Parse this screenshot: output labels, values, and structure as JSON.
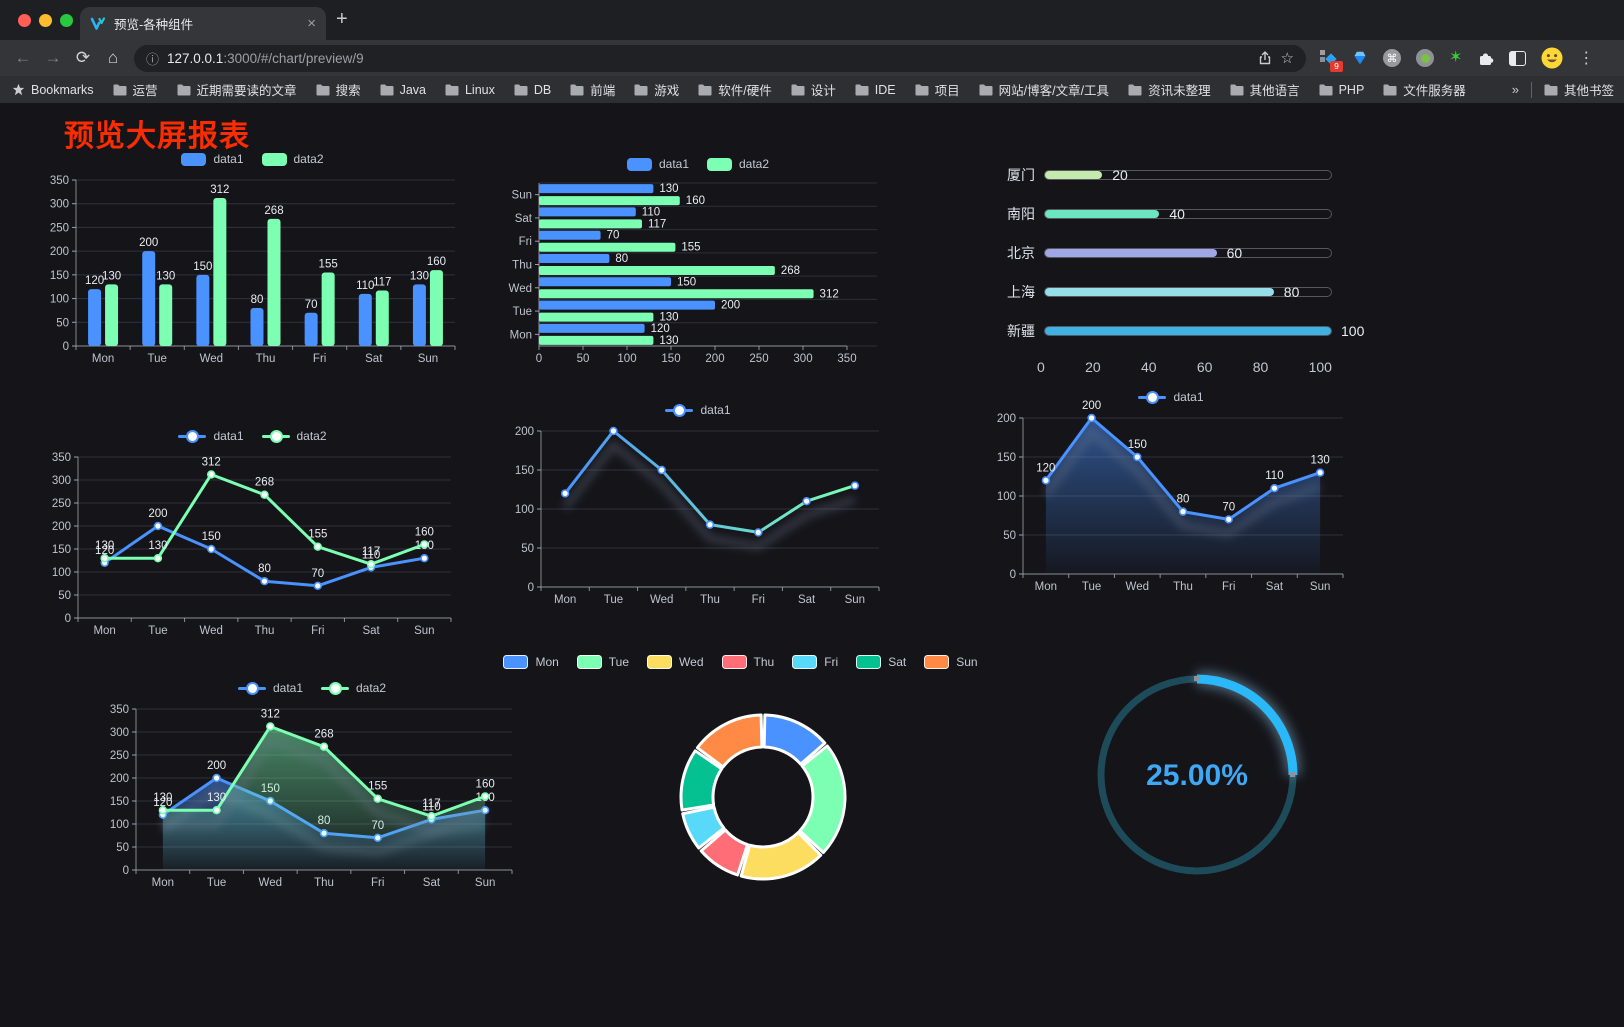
{
  "browser": {
    "tab": {
      "title": "预览-各种组件",
      "close_glyph": "×",
      "new_tab_glyph": "+"
    },
    "nav": {
      "back": "←",
      "forward": "→",
      "reload": "⟳",
      "home": "⌂",
      "info": "ⓘ",
      "star": "☆",
      "menu": "⋮"
    },
    "address": {
      "host": "127.0.0.1",
      "rest": ":3000/#/chart/preview/9"
    },
    "extensions_badge": "9",
    "cmd_glyph": "⌘",
    "green_star_glyph": "✶",
    "bookmarks_bar": {
      "root_label": "Bookmarks",
      "folders": [
        "运营",
        "近期需要读的文章",
        "搜索",
        "Java",
        "Linux",
        "DB",
        "前端",
        "游戏",
        "软件/硬件",
        "设计",
        "IDE",
        "项目",
        "网站/博客/文章/工具",
        "资讯未整理",
        "其他语言",
        "PHP",
        "文件服务器"
      ],
      "overflow": "»",
      "other": "其他书签"
    }
  },
  "page": {
    "title": "预览大屏报表"
  },
  "colors": {
    "data1": "#4992ff",
    "data2": "#7cffb2",
    "title_red": "#fb2c02"
  },
  "chart_data": [
    {
      "id": "grouped-bar",
      "type": "bar",
      "categories": [
        "Mon",
        "Tue",
        "Wed",
        "Thu",
        "Fri",
        "Sat",
        "Sun"
      ],
      "series": [
        {
          "name": "data1",
          "color": "#4992ff",
          "values": [
            120,
            200,
            150,
            80,
            70,
            110,
            130
          ]
        },
        {
          "name": "data2",
          "color": "#7cffb2",
          "values": [
            130,
            130,
            312,
            268,
            155,
            117,
            160
          ]
        }
      ],
      "ylim": [
        0,
        350
      ],
      "ystep": 50,
      "value_labels": true,
      "legend": "rect",
      "grid": true
    },
    {
      "id": "grouped-hbar",
      "type": "hbar",
      "categories_top_to_bottom": [
        "Sun",
        "Sat",
        "Fri",
        "Thu",
        "Wed",
        "Tue",
        "Mon"
      ],
      "series": [
        {
          "name": "data1",
          "color": "#4992ff",
          "values": [
            130,
            110,
            70,
            80,
            150,
            200,
            120
          ]
        },
        {
          "name": "data2",
          "color": "#7cffb2",
          "values": [
            160,
            117,
            155,
            268,
            312,
            130,
            130
          ]
        }
      ],
      "xlim": [
        0,
        350
      ],
      "xstep": 50,
      "value_labels": true,
      "legend": "rect"
    },
    {
      "id": "progress-bars",
      "type": "progress",
      "xlim": [
        0,
        100
      ],
      "xticks": [
        0,
        20,
        40,
        60,
        80,
        100
      ],
      "items": [
        {
          "label": "厦门",
          "value": 20,
          "color": "#c4ebad"
        },
        {
          "label": "南阳",
          "value": 40,
          "color": "#6be6c1"
        },
        {
          "label": "北京",
          "value": 60,
          "color": "#a0a7e6"
        },
        {
          "label": "上海",
          "value": 80,
          "color": "#96dee8"
        },
        {
          "label": "新疆",
          "value": 100,
          "color": "#3fb1e3"
        }
      ]
    },
    {
      "id": "line-two-series",
      "type": "line",
      "categories": [
        "Mon",
        "Tue",
        "Wed",
        "Thu",
        "Fri",
        "Sat",
        "Sun"
      ],
      "series": [
        {
          "name": "data1",
          "color": "#4992ff",
          "values": [
            120,
            200,
            150,
            80,
            70,
            110,
            130
          ]
        },
        {
          "name": "data2",
          "color": "#7cffb2",
          "values": [
            130,
            130,
            312,
            268,
            155,
            117,
            160
          ]
        }
      ],
      "ylim": [
        0,
        350
      ],
      "ystep": 50,
      "value_labels": true,
      "legend": "marker"
    },
    {
      "id": "line-gradient",
      "type": "line",
      "categories": [
        "Mon",
        "Tue",
        "Wed",
        "Thu",
        "Fri",
        "Sat",
        "Sun"
      ],
      "series": [
        {
          "name": "data1",
          "color": "#4992ff",
          "color2": "#7cffb2",
          "values": [
            120,
            200,
            150,
            80,
            70,
            110,
            130
          ]
        }
      ],
      "ylim": [
        0,
        200
      ],
      "ystep": 50,
      "value_labels": false,
      "legend": "marker",
      "shadow": true
    },
    {
      "id": "line-area",
      "type": "line",
      "categories": [
        "Mon",
        "Tue",
        "Wed",
        "Thu",
        "Fri",
        "Sat",
        "Sun"
      ],
      "series": [
        {
          "name": "data1",
          "color": "#4992ff",
          "area": true,
          "values": [
            120,
            200,
            150,
            80,
            70,
            110,
            130
          ]
        }
      ],
      "ylim": [
        0,
        200
      ],
      "ystep": 50,
      "value_labels": true,
      "legend": "marker",
      "shadow": true
    },
    {
      "id": "line-area-two",
      "type": "line",
      "categories": [
        "Mon",
        "Tue",
        "Wed",
        "Thu",
        "Fri",
        "Sat",
        "Sun"
      ],
      "series": [
        {
          "name": "data1",
          "color": "#4992ff",
          "area": true,
          "values": [
            120,
            200,
            150,
            80,
            70,
            110,
            130
          ]
        },
        {
          "name": "data2",
          "color": "#7cffb2",
          "area": true,
          "values": [
            130,
            130,
            312,
            268,
            155,
            117,
            160
          ]
        }
      ],
      "ylim": [
        0,
        350
      ],
      "ystep": 50,
      "value_labels": true,
      "legend": "marker",
      "shadow": true
    },
    {
      "id": "donut",
      "type": "pie",
      "labels": [
        "Mon",
        "Tue",
        "Wed",
        "Thu",
        "Fri",
        "Sat",
        "Sun"
      ],
      "values": [
        120,
        200,
        150,
        80,
        70,
        110,
        130
      ],
      "colors": [
        "#4992ff",
        "#7cffb2",
        "#fddd60",
        "#ff6e76",
        "#58d9f9",
        "#05c091",
        "#ff8a45"
      ]
    },
    {
      "id": "gauge",
      "type": "gauge",
      "value": 25,
      "display": "25.00%",
      "color": "#2ab8f8",
      "track": "#1e4b59",
      "text_color": "#3fa8f5"
    }
  ]
}
